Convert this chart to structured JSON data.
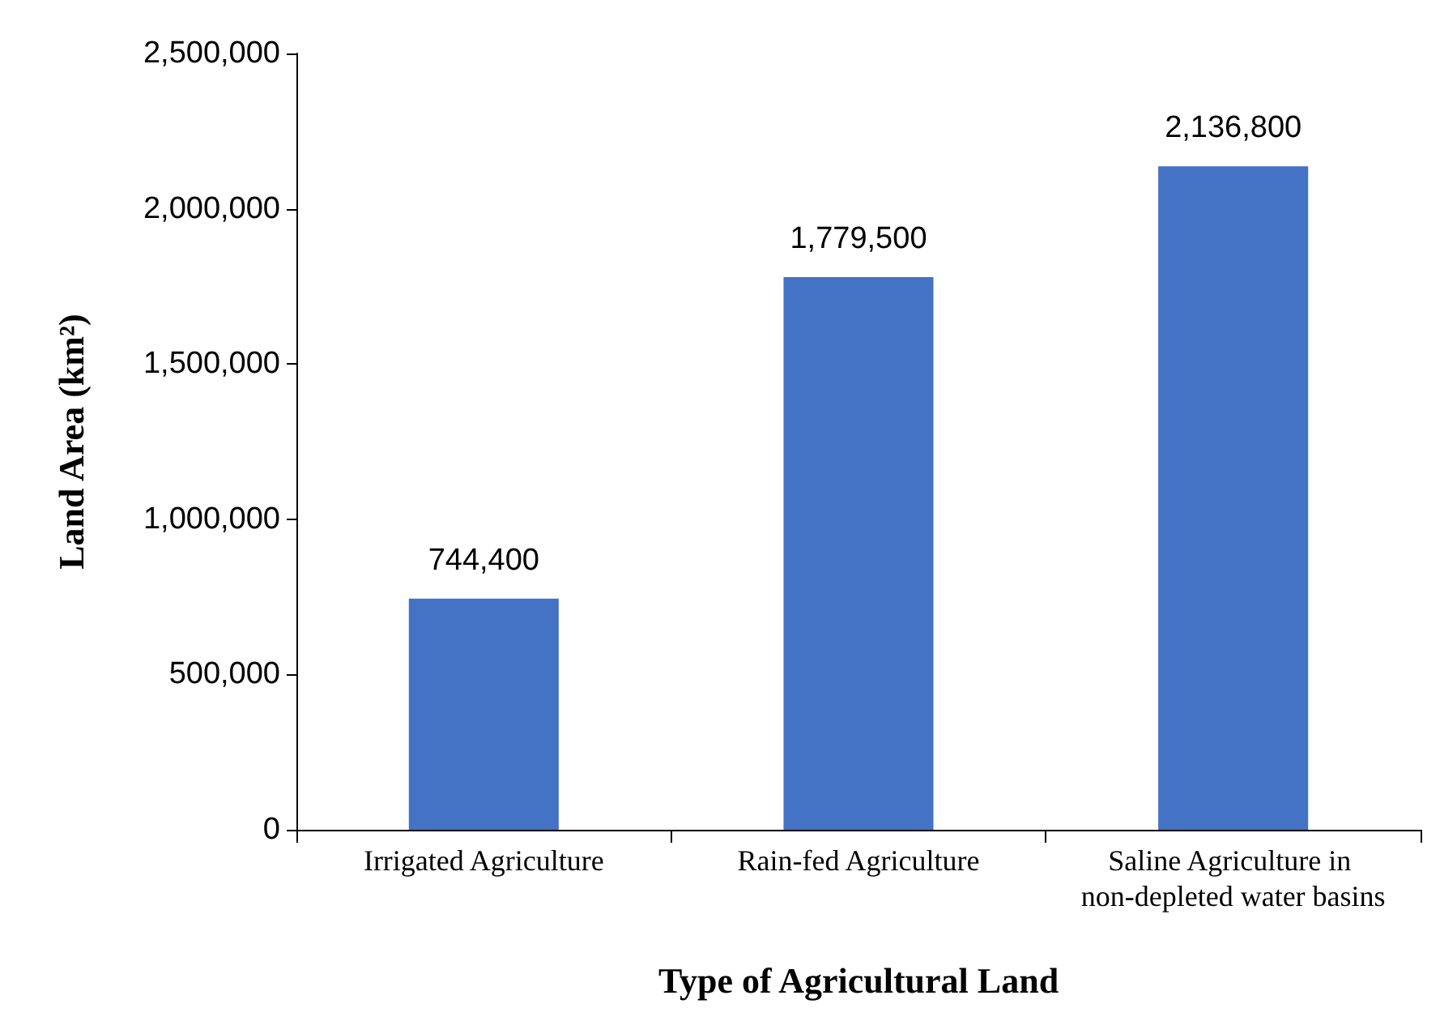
{
  "chart_data": {
    "type": "bar",
    "xlabel": "Type of Agricultural Land",
    "ylabel": "Land Area (km²)",
    "categories": [
      "Irrigated Agriculture",
      "Rain-fed Agriculture",
      "Saline Agriculture in non-depleted water basins"
    ],
    "values": [
      744400,
      1779500,
      2136800
    ],
    "color": "#4472c4",
    "value_labels": [
      "744,400",
      "1,779,500",
      "2,136,800"
    ],
    "ylim": [
      0,
      2500000
    ],
    "yticks": [
      0,
      {
        "value": 500000,
        "label": "500,000"
      },
      {
        "value": 1000000,
        "label": "1,000,000"
      },
      {
        "value": 1500000,
        "label": "1,500,000"
      },
      {
        "value": 2000000,
        "label": "2,000,000"
      },
      {
        "value": 2500000,
        "label": "2,500,000"
      }
    ],
    "grid": false
  }
}
